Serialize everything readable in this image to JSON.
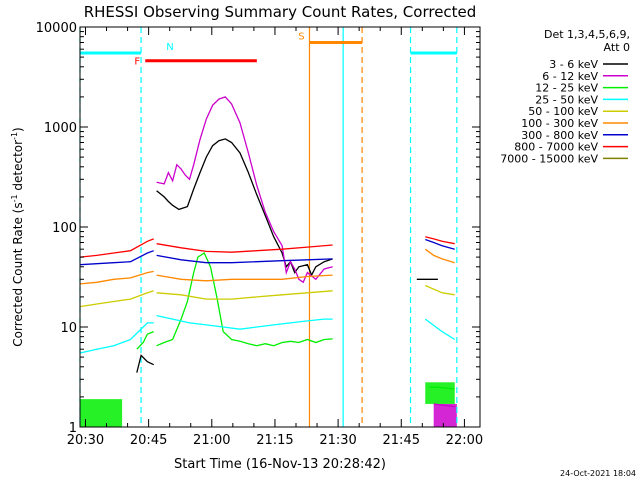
{
  "chart_data": {
    "type": "line",
    "title": "RHESSI Observing Summary Count Rates, Corrected",
    "xlabel": "Start Time (16-Nov-13 20:28:42)",
    "ylabel_main": "Corrected Count Rate (s",
    "ylabel_sup1": "-1",
    "ylabel_mid": " detector",
    "ylabel_sup2": "-1",
    "ylabel_end": ")",
    "yscale": "log",
    "ylim": [
      1,
      10000
    ],
    "xlim_min": [
      0,
      95
    ],
    "x_ticks": [
      {
        "t": 1.3,
        "label": "20:30"
      },
      {
        "t": 16.3,
        "label": "20:45"
      },
      {
        "t": 31.3,
        "label": "21:00"
      },
      {
        "t": 46.3,
        "label": "21:15"
      },
      {
        "t": 61.3,
        "label": "21:30"
      },
      {
        "t": 76.3,
        "label": "21:45"
      },
      {
        "t": 91.3,
        "label": "22:00"
      }
    ],
    "y_ticks": [
      {
        "v": 1,
        "label": "1"
      },
      {
        "v": 10,
        "label": "10"
      },
      {
        "v": 100,
        "label": "100"
      },
      {
        "v": 1000,
        "label": "1000"
      },
      {
        "v": 10000,
        "label": "10000"
      }
    ],
    "legend_header": [
      "Det 1,3,4,5,6,9,",
      "Att 0"
    ],
    "legend_placement": "right",
    "series": [
      {
        "name": "3 - 6 keV",
        "color": "#000000",
        "segments": [
          [
            [
              13.5,
              3.5
            ],
            [
              14.5,
              5.2
            ],
            [
              16,
              4.5
            ],
            [
              17.5,
              4.2
            ]
          ],
          [
            [
              18.2,
              230
            ],
            [
              20,
              200
            ],
            [
              21,
              180
            ],
            [
              22,
              165
            ],
            [
              23.5,
              150
            ],
            [
              25.5,
              160
            ],
            [
              27,
              240
            ],
            [
              28.5,
              350
            ],
            [
              30,
              500
            ],
            [
              31.5,
              650
            ],
            [
              33,
              730
            ],
            [
              34.5,
              760
            ],
            [
              36,
              700
            ],
            [
              38,
              550
            ],
            [
              40,
              350
            ],
            [
              42,
              210
            ],
            [
              44,
              130
            ],
            [
              46,
              80
            ],
            [
              48,
              55
            ],
            [
              49,
              40
            ],
            [
              50,
              45
            ],
            [
              51,
              35
            ],
            [
              52,
              40
            ],
            [
              54,
              42
            ],
            [
              55,
              33
            ],
            [
              56,
              40
            ],
            [
              58,
              45
            ],
            [
              60,
              48
            ]
          ],
          [
            [
              80,
              30
            ],
            [
              85,
              30
            ]
          ]
        ]
      },
      {
        "name": "6 - 12 keV",
        "color": "#cc00cc",
        "segments": [
          [
            [
              18.2,
              280
            ],
            [
              20,
              270
            ],
            [
              21,
              350
            ],
            [
              22,
              290
            ],
            [
              23,
              420
            ],
            [
              24,
              380
            ],
            [
              25,
              330
            ],
            [
              26,
              300
            ],
            [
              27,
              420
            ],
            [
              28.5,
              750
            ],
            [
              30,
              1200
            ],
            [
              31.5,
              1650
            ],
            [
              33,
              1900
            ],
            [
              34.5,
              2000
            ],
            [
              36,
              1700
            ],
            [
              38,
              1100
            ],
            [
              40,
              550
            ],
            [
              42,
              260
            ],
            [
              44,
              140
            ],
            [
              46,
              90
            ],
            [
              48,
              65
            ],
            [
              49,
              35
            ],
            [
              50,
              45
            ],
            [
              51,
              38
            ],
            [
              52,
              30
            ],
            [
              53,
              28
            ],
            [
              54,
              35
            ],
            [
              56,
              30
            ],
            [
              58,
              38
            ],
            [
              60,
              40
            ]
          ],
          [
            [
              84,
              1.7
            ],
            [
              89,
              1.6
            ]
          ]
        ]
      },
      {
        "name": "12 - 25 keV",
        "color": "#00ee00",
        "segments": [
          [
            [
              13.5,
              6
            ],
            [
              15,
              7
            ],
            [
              16,
              8.5
            ],
            [
              17.5,
              9
            ]
          ],
          [
            [
              18.2,
              6.5
            ],
            [
              20,
              7
            ],
            [
              22,
              7.5
            ],
            [
              24,
              12
            ],
            [
              25.5,
              18
            ],
            [
              27,
              35
            ],
            [
              28,
              50
            ],
            [
              29.5,
              55
            ],
            [
              31,
              40
            ],
            [
              32.5,
              20
            ],
            [
              34,
              9
            ],
            [
              36,
              7.5
            ],
            [
              38,
              7.2
            ],
            [
              40,
              6.8
            ],
            [
              42,
              6.5
            ],
            [
              44,
              6.8
            ],
            [
              46,
              6.5
            ],
            [
              48,
              7
            ],
            [
              50,
              7.2
            ],
            [
              52,
              7
            ],
            [
              54,
              7.5
            ],
            [
              56,
              7
            ],
            [
              58,
              7.5
            ],
            [
              60,
              7.6
            ]
          ],
          [
            [
              83,
              2.5
            ],
            [
              85,
              2.5
            ],
            [
              89,
              2.4
            ]
          ]
        ]
      },
      {
        "name": "25 - 50 keV",
        "color": "#00ffff",
        "segments": [
          [
            [
              0,
              5.5
            ],
            [
              4,
              6
            ],
            [
              8,
              6.5
            ],
            [
              12,
              7.5
            ],
            [
              16,
              11
            ],
            [
              17.5,
              11
            ]
          ],
          [
            [
              18.2,
              13
            ],
            [
              22,
              12
            ],
            [
              26,
              11
            ],
            [
              30,
              10.5
            ],
            [
              34,
              10
            ],
            [
              38,
              9.5
            ],
            [
              42,
              10
            ],
            [
              46,
              10.5
            ],
            [
              50,
              11
            ],
            [
              54,
              11.5
            ],
            [
              58,
              12
            ],
            [
              60,
              12
            ]
          ],
          [
            [
              82,
              12
            ],
            [
              86,
              9
            ],
            [
              89,
              7.5
            ]
          ]
        ]
      },
      {
        "name": "50 - 100 keV",
        "color": "#cccc00",
        "segments": [
          [
            [
              0,
              16
            ],
            [
              4,
              17
            ],
            [
              8,
              18
            ],
            [
              12,
              19
            ],
            [
              16,
              22
            ],
            [
              17.5,
              23
            ]
          ],
          [
            [
              18.2,
              22
            ],
            [
              24,
              21
            ],
            [
              30,
              19
            ],
            [
              36,
              19
            ],
            [
              42,
              20
            ],
            [
              48,
              21
            ],
            [
              54,
              22
            ],
            [
              60,
              23
            ]
          ],
          [
            [
              82,
              26
            ],
            [
              86,
              22
            ],
            [
              89,
              21
            ]
          ]
        ]
      },
      {
        "name": "100 - 300 keV",
        "color": "#ff8800",
        "segments": [
          [
            [
              0,
              27
            ],
            [
              4,
              28
            ],
            [
              8,
              30
            ],
            [
              12,
              31
            ],
            [
              16,
              35
            ],
            [
              17.5,
              36
            ]
          ],
          [
            [
              18.2,
              33
            ],
            [
              24,
              30
            ],
            [
              30,
              29
            ],
            [
              36,
              30
            ],
            [
              42,
              30
            ],
            [
              48,
              30
            ],
            [
              54,
              32
            ],
            [
              60,
              33
            ]
          ],
          [
            [
              82,
              60
            ],
            [
              84,
              52
            ],
            [
              86,
              48
            ],
            [
              89,
              44
            ]
          ]
        ]
      },
      {
        "name": "300 - 800 keV",
        "color": "#0000cc",
        "segments": [
          [
            [
              0,
              42
            ],
            [
              4,
              43
            ],
            [
              8,
              44
            ],
            [
              12,
              45
            ],
            [
              16,
              55
            ],
            [
              17.5,
              58
            ]
          ],
          [
            [
              18.2,
              52
            ],
            [
              24,
              47
            ],
            [
              30,
              44
            ],
            [
              36,
              44
            ],
            [
              42,
              45
            ],
            [
              48,
              46
            ],
            [
              54,
              47
            ],
            [
              60,
              48
            ]
          ],
          [
            [
              82,
              75
            ],
            [
              84,
              70
            ],
            [
              86,
              65
            ],
            [
              89,
              60
            ]
          ]
        ]
      },
      {
        "name": "800 - 7000 keV",
        "color": "#ff0000",
        "segments": [
          [
            [
              0,
              50
            ],
            [
              4,
              52
            ],
            [
              8,
              55
            ],
            [
              12,
              58
            ],
            [
              16,
              72
            ],
            [
              17.5,
              76
            ]
          ],
          [
            [
              18.2,
              68
            ],
            [
              24,
              62
            ],
            [
              30,
              57
            ],
            [
              36,
              56
            ],
            [
              42,
              58
            ],
            [
              48,
              60
            ],
            [
              54,
              63
            ],
            [
              60,
              66
            ]
          ],
          [
            [
              82,
              80
            ],
            [
              84,
              76
            ],
            [
              86,
              72
            ],
            [
              89,
              68
            ]
          ]
        ]
      },
      {
        "name": "7000 - 15000 keV",
        "color": "#808000",
        "segments": []
      }
    ],
    "flag_bars": [
      {
        "label": "N",
        "color": "#00ffff",
        "y": 5500,
        "segments": [
          [
            0,
            14.5
          ],
          [
            78.5,
            89.5
          ]
        ]
      },
      {
        "label": "F",
        "color": "#ff0000",
        "y": 4600,
        "segments": [
          [
            15.5,
            42
          ]
        ]
      },
      {
        "label": "S",
        "color": "#ff8800",
        "y": 7000,
        "segments": [
          [
            54.5,
            67
          ]
        ]
      }
    ],
    "vertical_markers": [
      {
        "t": 0,
        "color": "#00ffff",
        "style": "dashed"
      },
      {
        "t": 14.5,
        "color": "#00ffff",
        "style": "dashed"
      },
      {
        "t": 54.5,
        "color": "#ff8800",
        "style": "solid"
      },
      {
        "t": 62.5,
        "color": "#00ffff",
        "style": "solid"
      },
      {
        "t": 67,
        "color": "#ff8800",
        "style": "dashed"
      },
      {
        "t": 78.5,
        "color": "#00ffff",
        "style": "dashed"
      },
      {
        "t": 89.5,
        "color": "#00ffff",
        "style": "dashed"
      }
    ],
    "low_blocks": [
      {
        "color": "#00ee00",
        "t0": 0,
        "t1": 10,
        "y0": 1,
        "y1": 1.9
      },
      {
        "color": "#cc00cc",
        "t0": 84,
        "t1": 89.5,
        "y0": 1,
        "y1": 1.7
      },
      {
        "color": "#00ee00",
        "t0": 82,
        "t1": 89,
        "y0": 1.7,
        "y1": 2.8
      }
    ]
  },
  "footer": {
    "date": "24-Oct-2021 18:04"
  }
}
